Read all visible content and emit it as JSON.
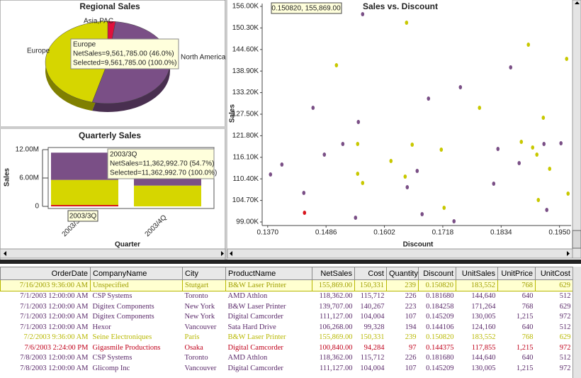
{
  "chart_data": [
    {
      "type": "pie",
      "title": "Regional Sales",
      "categories": [
        "Asia,PAC",
        "North America",
        "Europe"
      ],
      "values": [
        2,
        52,
        46
      ],
      "colors": [
        "#e0103c",
        "#7a4f86",
        "#d6d600"
      ],
      "annotation": [
        "Europe",
        "NetSales=9,561,785.00 (46.0%)",
        "Selected=9,561,785.00 (100.0%)"
      ]
    },
    {
      "type": "bar",
      "title": "Quarterly Sales",
      "stacked": true,
      "x_label": "Quarter",
      "y_label": "Sales",
      "categories": [
        "2003/3Q",
        "2003/4Q"
      ],
      "series": [
        {
          "color": "#d8141c",
          "values": [
            300000,
            0
          ]
        },
        {
          "color": "#d6d600",
          "values": [
            5300000,
            4400000
          ]
        },
        {
          "color": "#7a4f86",
          "values": [
            5762993,
            5010000
          ]
        }
      ],
      "ylim": [
        0,
        12000000
      ],
      "yticks": [
        0,
        {
          "value": 6000000,
          "label": "6.00M"
        },
        {
          "value": 12000000,
          "label": "12.00M"
        }
      ],
      "annotation": [
        "2003/3Q",
        "NetSales=11,362,992.70 (54.7%)",
        "Selected=11,362,992.70 (100.0%)"
      ]
    },
    {
      "type": "scatter",
      "title": "Sales vs. Discount",
      "x_label": "Discount",
      "y_label": "Sales",
      "annotation": "0.150820, 155,869.00",
      "xlim": [
        0.1359,
        0.1973
      ],
      "ylim": [
        98060,
        156750
      ],
      "xticks": [
        {
          "value": 0.137,
          "label": "0.1370"
        },
        {
          "value": 0.1486,
          "label": "0.1486"
        },
        {
          "value": 0.1602,
          "label": "0.1602"
        },
        {
          "value": 0.1718,
          "label": "0.1718"
        },
        {
          "value": 0.1834,
          "label": "0.1834"
        },
        {
          "value": 0.195,
          "label": "0.1950"
        }
      ],
      "yticks": [
        {
          "value": 99000,
          "label": "99.00K"
        },
        {
          "value": 104700,
          "label": "104.70K"
        },
        {
          "value": 110400,
          "label": "110.40K"
        },
        {
          "value": 116100,
          "label": "116.10K"
        },
        {
          "value": 121800,
          "label": "121.80K"
        },
        {
          "value": 127500,
          "label": "127.50K"
        },
        {
          "value": 133200,
          "label": "133.20K"
        },
        {
          "value": 138900,
          "label": "138.90K"
        },
        {
          "value": 144600,
          "label": "144.60K"
        },
        {
          "value": 150300,
          "label": "150.30K"
        },
        {
          "value": 156000,
          "label": "156.00K"
        }
      ],
      "series": [
        {
          "color": "#7a4f86",
          "x": [
            0.13756,
            0.13982,
            0.14418,
            0.14601,
            0.14826,
            0.15193,
            0.15446,
            0.15502,
            0.15587,
            0.16474,
            0.16671,
            0.16769,
            0.16896,
            0.17403,
            0.1753,
            0.18192,
            0.18276,
            0.18529,
            0.18698,
            0.19191,
            0.19247,
            0.19529
          ],
          "values": [
            111563,
            114188,
            106688,
            129188,
            116813,
            119625,
            100125,
            125438,
            153938,
            108188,
            112500,
            101063,
            131625,
            99188,
            134625,
            109125,
            118313,
            139875,
            114563,
            119625,
            102188,
            119813
          ]
        },
        {
          "color": "#c8c800",
          "x": [
            0.15066,
            0.15488,
            0.15488,
            0.15587,
            0.1615,
            0.1646,
            0.16432,
            0.16572,
            0.17206,
            0.1715,
            0.1791,
            0.18881,
            0.18741,
            0.18966,
            0.1905,
            0.19079,
            0.19178,
            0.19304,
            0.19642,
            0.1967
          ],
          "values": [
            140438,
            119625,
            111750,
            109313,
            115125,
            151688,
            111000,
            119438,
            102750,
            118125,
            129188,
            145875,
            120188,
            118688,
            116813,
            104813,
            126563,
            113063,
            142125,
            106500
          ]
        },
        {
          "color": "#d8141c",
          "x": [
            0.14432
          ],
          "values": [
            101438
          ]
        },
        {
          "color": "#1a8a1a",
          "x": [
            0.15082
          ],
          "values": [
            155869
          ]
        }
      ]
    }
  ],
  "table": {
    "columns": [
      "OrderDate",
      "CompanyName",
      "City",
      "ProductName",
      "NetSales",
      "Cost",
      "Quantity",
      "Discount",
      "UnitSales",
      "UnitPrice",
      "UnitCost"
    ],
    "rows": [
      [
        "7/16/2003 9:36:00 AM",
        "Unspecified",
        "Stutgart",
        "B&W Laser Printer",
        "155,869.00",
        "150,331",
        "239",
        "0.150820",
        "183,552",
        "768",
        "629"
      ],
      [
        "7/1/2003 12:00:00 AM",
        "CSP Systems",
        "Toronto",
        "AMD Athlon",
        "118,362.00",
        "115,712",
        "226",
        "0.181680",
        "144,640",
        "640",
        "512"
      ],
      [
        "7/1/2003 12:00:00 AM",
        "Digitex Components",
        "New York",
        "B&W Laser Printer",
        "139,707.00",
        "140,267",
        "223",
        "0.184258",
        "171,264",
        "768",
        "629"
      ],
      [
        "7/1/2003 12:00:00 AM",
        "Digitex Components",
        "New York",
        "Digital Camcorder",
        "111,127.00",
        "104,004",
        "107",
        "0.145209",
        "130,005",
        "1,215",
        "972"
      ],
      [
        "7/1/2003 12:00:00 AM",
        "Hexor",
        "Vancouver",
        "Sata Hard Drive",
        "106,268.00",
        "99,328",
        "194",
        "0.144106",
        "124,160",
        "640",
        "512"
      ],
      [
        "7/2/2003 9:36:00 AM",
        "Seine Electroniques",
        "Paris",
        "B&W Laser Printer",
        "155,869.00",
        "150,331",
        "239",
        "0.150820",
        "183,552",
        "768",
        "629"
      ],
      [
        "7/6/2003 2:24:00 PM",
        "Gigasmile Productions",
        "Osaka",
        "Digital Camcorder",
        "100,840.00",
        "94,284",
        "97",
        "0.144375",
        "117,855",
        "1,215",
        "972"
      ],
      [
        "7/8/2003 12:00:00 AM",
        "CSP Systems",
        "Toronto",
        "AMD Athlon",
        "118,362.00",
        "115,712",
        "226",
        "0.181680",
        "144,640",
        "640",
        "512"
      ],
      [
        "7/8/2003 12:00:00 AM",
        "Glicomp Inc",
        "Vancouver",
        "Digital Camcorder",
        "111,127.00",
        "104,004",
        "107",
        "0.145209",
        "130,005",
        "1,215",
        "972"
      ]
    ]
  }
}
